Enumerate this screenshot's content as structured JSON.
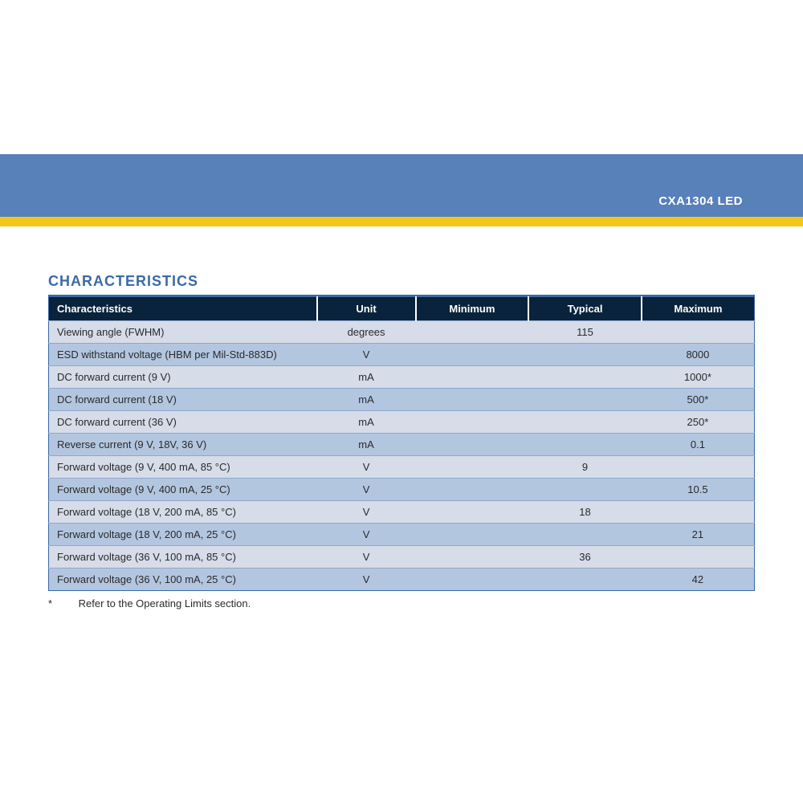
{
  "header": {
    "product_title": "CXA1304 LED",
    "banner_blue_color": "#5880b9",
    "banner_yellow_color": "#f2c71a"
  },
  "section": {
    "title": "CHARACTERISTICS",
    "title_color": "#3b6aa5"
  },
  "table": {
    "header_bg": "#0a233c",
    "row_odd_bg": "#d6dce8",
    "row_even_bg": "#b3c6e0",
    "border_color": "#3b6aa5",
    "columns": [
      "Characteristics",
      "Unit",
      "Minimum",
      "Typical",
      "Maximum"
    ],
    "rows": [
      {
        "characteristic": "Viewing angle (FWHM)",
        "unit": "degrees",
        "min": "",
        "typ": "115",
        "max": ""
      },
      {
        "characteristic": "ESD withstand voltage (HBM per Mil-Std-883D)",
        "unit": "V",
        "min": "",
        "typ": "",
        "max": "8000"
      },
      {
        "characteristic": "DC forward current (9 V)",
        "unit": "mA",
        "min": "",
        "typ": "",
        "max": "1000*"
      },
      {
        "characteristic": "DC forward current (18 V)",
        "unit": "mA",
        "min": "",
        "typ": "",
        "max": "500*"
      },
      {
        "characteristic": "DC forward current (36 V)",
        "unit": "mA",
        "min": "",
        "typ": "",
        "max": "250*"
      },
      {
        "characteristic": "Reverse current (9 V, 18V, 36 V)",
        "unit": "mA",
        "min": "",
        "typ": "",
        "max": "0.1"
      },
      {
        "characteristic": "Forward voltage (9 V, 400 mA, 85 °C)",
        "unit": "V",
        "min": "",
        "typ": "9",
        "max": ""
      },
      {
        "characteristic": "Forward voltage (9 V, 400 mA, 25 °C)",
        "unit": "V",
        "min": "",
        "typ": "",
        "max": "10.5"
      },
      {
        "characteristic": "Forward voltage (18 V, 200 mA, 85 °C)",
        "unit": "V",
        "min": "",
        "typ": "18",
        "max": ""
      },
      {
        "characteristic": "Forward voltage (18 V, 200 mA, 25 °C)",
        "unit": "V",
        "min": "",
        "typ": "",
        "max": "21"
      },
      {
        "characteristic": "Forward voltage (36 V, 100 mA, 85 °C)",
        "unit": "V",
        "min": "",
        "typ": "36",
        "max": ""
      },
      {
        "characteristic": "Forward voltage (36 V, 100 mA, 25 °C)",
        "unit": "V",
        "min": "",
        "typ": "",
        "max": "42"
      }
    ]
  },
  "footnote": {
    "marker": "*",
    "text": "Refer to the Operating Limits section."
  }
}
